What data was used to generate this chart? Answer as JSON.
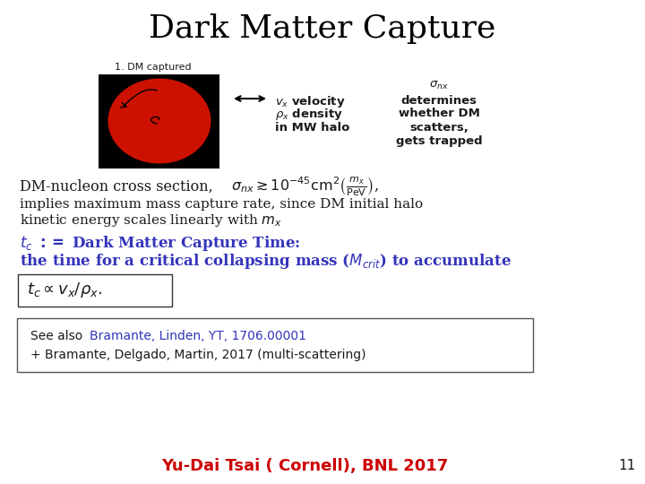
{
  "title": "Dark Matter Capture",
  "title_fontsize": 26,
  "title_color": "#000000",
  "background_color": "#ffffff",
  "slide_number": "11",
  "dm_captured_label": "1. DM captured",
  "blue_color": "#3333bb",
  "text_color": "#1a1a1a",
  "red_color": "#cc0000"
}
